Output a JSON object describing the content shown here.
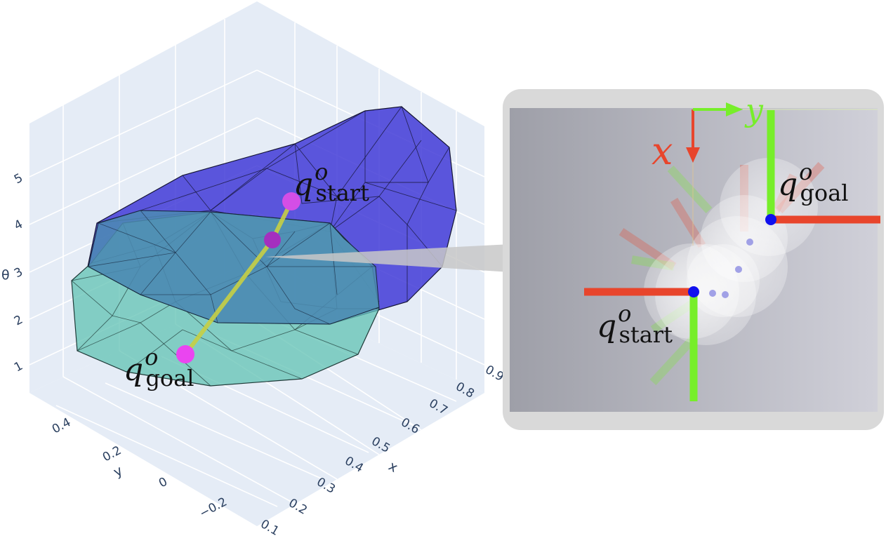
{
  "plot3d": {
    "axes": {
      "theta": {
        "title": "θ",
        "ticks": [
          "1",
          "2",
          "3",
          "4",
          "5"
        ]
      },
      "y": {
        "title": "y",
        "ticks": [
          "0.4",
          "0.2",
          "0",
          "−0.2"
        ]
      },
      "x": {
        "title": "x",
        "ticks": [
          "0.1",
          "0.2",
          "0.3",
          "0.4",
          "0.5",
          "0.6",
          "0.7",
          "0.8",
          "0.9"
        ]
      }
    },
    "colors": {
      "background_panel": "#e5ecf6",
      "grid": "#ffffff",
      "blue_hull": "#3b33d6",
      "teal_hull": "#66c4b6",
      "overlap": "#4c8bb3",
      "path": "#c7cf44",
      "markers": "#d44ee6"
    },
    "labels": {
      "start": {
        "base": "q",
        "sup": "o",
        "sub": "start"
      },
      "goal": {
        "base": "q",
        "sup": "o",
        "sub": "goal"
      }
    }
  },
  "inset": {
    "frame_color": "#d9d9d9",
    "axis_x_label": "x",
    "axis_y_label": "y",
    "axis_x_color": "#e8452c",
    "axis_y_color": "#77ee2a",
    "frame_line_red": "#e8452c",
    "frame_line_green": "#77ee2a",
    "point_color": "#1010ee",
    "labels": {
      "goal": {
        "base": "q",
        "sup": "o",
        "sub": "goal"
      },
      "start": {
        "base": "q",
        "sup": "o",
        "sub": "start"
      }
    }
  }
}
